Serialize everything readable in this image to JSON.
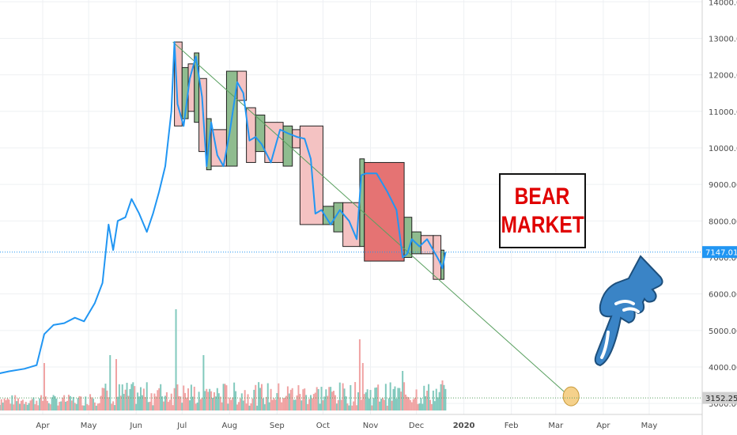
{
  "chart_data": {
    "type": "line",
    "title": "",
    "xlabel": "",
    "ylabel": "",
    "ylim": [
      2700,
      14050
    ],
    "x_ticks": [
      "Apr",
      "May",
      "Jun",
      "Jul",
      "Aug",
      "Sep",
      "Oct",
      "Nov",
      "Dec",
      "2020",
      "Feb",
      "Mar",
      "Apr",
      "May"
    ],
    "y_ticks": [
      "14000.00",
      "13000.00",
      "12000.00",
      "11000.00",
      "10000.00",
      "9000.00",
      "8000.00",
      "7000.00",
      "6000.00",
      "5000.00",
      "4000.00",
      "3000.00"
    ],
    "current_price_label": "7147.01",
    "projection_target_label": "3152.25",
    "current_price": 7147.01,
    "projection_target": 3152.25,
    "annotation": [
      "BEAR",
      "MARKET"
    ],
    "series": [
      {
        "values": [
          [
            "2019-03-01",
            3800
          ],
          [
            "2019-03-10",
            3880
          ],
          [
            "2019-03-20",
            3950
          ],
          [
            "2019-03-28",
            4050
          ],
          [
            "2019-04-02",
            4900
          ],
          [
            "2019-04-08",
            5150
          ],
          [
            "2019-04-15",
            5200
          ],
          [
            "2019-04-22",
            5350
          ],
          [
            "2019-04-28",
            5250
          ],
          [
            "2019-05-05",
            5750
          ],
          [
            "2019-05-10",
            6300
          ],
          [
            "2019-05-14",
            7900
          ],
          [
            "2019-05-17",
            7200
          ],
          [
            "2019-05-20",
            8000
          ],
          [
            "2019-05-25",
            8100
          ],
          [
            "2019-05-29",
            8600
          ],
          [
            "2019-06-03",
            8200
          ],
          [
            "2019-06-08",
            7700
          ],
          [
            "2019-06-12",
            8200
          ],
          [
            "2019-06-16",
            8800
          ],
          [
            "2019-06-20",
            9500
          ],
          [
            "2019-06-24",
            11000
          ],
          [
            "2019-06-26",
            12900
          ],
          [
            "2019-06-28",
            11200
          ],
          [
            "2019-07-02",
            10600
          ],
          [
            "2019-07-06",
            11900
          ],
          [
            "2019-07-10",
            12500
          ],
          [
            "2019-07-14",
            11400
          ],
          [
            "2019-07-17",
            9500
          ],
          [
            "2019-07-20",
            10700
          ],
          [
            "2019-07-24",
            9800
          ],
          [
            "2019-07-28",
            9500
          ],
          [
            "2019-08-01",
            10400
          ],
          [
            "2019-08-06",
            11800
          ],
          [
            "2019-08-10",
            11500
          ],
          [
            "2019-08-14",
            10200
          ],
          [
            "2019-08-18",
            10300
          ],
          [
            "2019-08-22",
            10100
          ],
          [
            "2019-08-28",
            9600
          ],
          [
            "2019-09-03",
            10500
          ],
          [
            "2019-09-08",
            10400
          ],
          [
            "2019-09-14",
            10300
          ],
          [
            "2019-09-19",
            10250
          ],
          [
            "2019-09-23",
            9700
          ],
          [
            "2019-09-26",
            8200
          ],
          [
            "2019-09-30",
            8300
          ],
          [
            "2019-10-06",
            7900
          ],
          [
            "2019-10-12",
            8300
          ],
          [
            "2019-10-18",
            8000
          ],
          [
            "2019-10-23",
            7500
          ],
          [
            "2019-10-26",
            9250
          ],
          [
            "2019-10-29",
            9300
          ],
          [
            "2019-11-05",
            9300
          ],
          [
            "2019-11-12",
            8800
          ],
          [
            "2019-11-18",
            8300
          ],
          [
            "2019-11-22",
            7000
          ],
          [
            "2019-11-25",
            7100
          ],
          [
            "2019-11-28",
            7500
          ],
          [
            "2019-12-03",
            7300
          ],
          [
            "2019-12-08",
            7500
          ],
          [
            "2019-12-12",
            7200
          ],
          [
            "2019-12-16",
            6900
          ],
          [
            "2019-12-18",
            6700
          ],
          [
            "2019-12-20",
            7150
          ]
        ]
      }
    ],
    "boxes": [
      {
        "x0": "2019-06-26",
        "x1": "2019-07-01",
        "y0": 10600,
        "y1": 12900,
        "color": "red"
      },
      {
        "x0": "2019-07-01",
        "x1": "2019-07-05",
        "y0": 10800,
        "y1": 12200,
        "color": "green"
      },
      {
        "x0": "2019-07-05",
        "x1": "2019-07-09",
        "y0": 11000,
        "y1": 12300,
        "color": "red"
      },
      {
        "x0": "2019-07-09",
        "x1": "2019-07-12",
        "y0": 10700,
        "y1": 12600,
        "color": "green"
      },
      {
        "x0": "2019-07-12",
        "x1": "2019-07-17",
        "y0": 9900,
        "y1": 11900,
        "color": "red"
      },
      {
        "x0": "2019-07-17",
        "x1": "2019-07-20",
        "y0": 9400,
        "y1": 10800,
        "color": "green"
      },
      {
        "x0": "2019-07-20",
        "x1": "2019-07-30",
        "y0": 9500,
        "y1": 10500,
        "color": "red"
      },
      {
        "x0": "2019-07-30",
        "x1": "2019-08-06",
        "y0": 9500,
        "y1": 12100,
        "color": "green"
      },
      {
        "x0": "2019-08-06",
        "x1": "2019-08-12",
        "y0": 11300,
        "y1": 12100,
        "color": "red"
      },
      {
        "x0": "2019-08-12",
        "x1": "2019-08-18",
        "y0": 9600,
        "y1": 11100,
        "color": "red"
      },
      {
        "x0": "2019-08-18",
        "x1": "2019-08-24",
        "y0": 9900,
        "y1": 10900,
        "color": "green"
      },
      {
        "x0": "2019-08-24",
        "x1": "2019-09-05",
        "y0": 9600,
        "y1": 10700,
        "color": "red"
      },
      {
        "x0": "2019-09-05",
        "x1": "2019-09-11",
        "y0": 9500,
        "y1": 10600,
        "color": "green"
      },
      {
        "x0": "2019-09-11",
        "x1": "2019-09-16",
        "y0": 10000,
        "y1": 10500,
        "color": "red"
      },
      {
        "x0": "2019-09-16",
        "x1": "2019-10-01",
        "y0": 7900,
        "y1": 10600,
        "color": "red"
      },
      {
        "x0": "2019-10-01",
        "x1": "2019-10-08",
        "y0": 7900,
        "y1": 8400,
        "color": "green"
      },
      {
        "x0": "2019-10-08",
        "x1": "2019-10-14",
        "y0": 7700,
        "y1": 8500,
        "color": "green"
      },
      {
        "x0": "2019-10-14",
        "x1": "2019-10-25",
        "y0": 7300,
        "y1": 8500,
        "color": "red"
      },
      {
        "x0": "2019-10-25",
        "x1": "2019-10-28",
        "y0": 7300,
        "y1": 9700,
        "color": "green"
      },
      {
        "x0": "2019-10-28",
        "x1": "2019-11-23",
        "y0": 6900,
        "y1": 9600,
        "color": "red"
      },
      {
        "x0": "2019-11-23",
        "x1": "2019-11-28",
        "y0": 7000,
        "y1": 8100,
        "color": "green"
      },
      {
        "x0": "2019-11-28",
        "x1": "2019-12-04",
        "y0": 7100,
        "y1": 7700,
        "color": "green"
      },
      {
        "x0": "2019-12-04",
        "x1": "2019-12-12",
        "y0": 7100,
        "y1": 7600,
        "color": "red"
      },
      {
        "x0": "2019-12-12",
        "x1": "2019-12-17",
        "y0": 6400,
        "y1": 7600,
        "color": "red"
      },
      {
        "x0": "2019-12-17",
        "x1": "2019-12-19",
        "y0": 6400,
        "y1": 7200,
        "color": "green"
      }
    ],
    "trendline": {
      "start": [
        "2019-06-25",
        12900
      ],
      "end": [
        "2020-03-11",
        3152.25
      ]
    },
    "colors": {
      "price_line": "#2196f3",
      "trendline": "#5aa060",
      "box_red": "#e57373",
      "box_green": "#8fbc8f",
      "box_pink": "#f4c2c2",
      "price_tag": "#2196f3",
      "target_tag": "#d0d0d0",
      "vol_green": "#82c9bd",
      "vol_red": "#f0a3a3",
      "circle": "#f5d18b",
      "hand": "#3a84c6",
      "annotation_text": "#e00000"
    },
    "icons": [
      "hand-pointing-icon"
    ]
  }
}
